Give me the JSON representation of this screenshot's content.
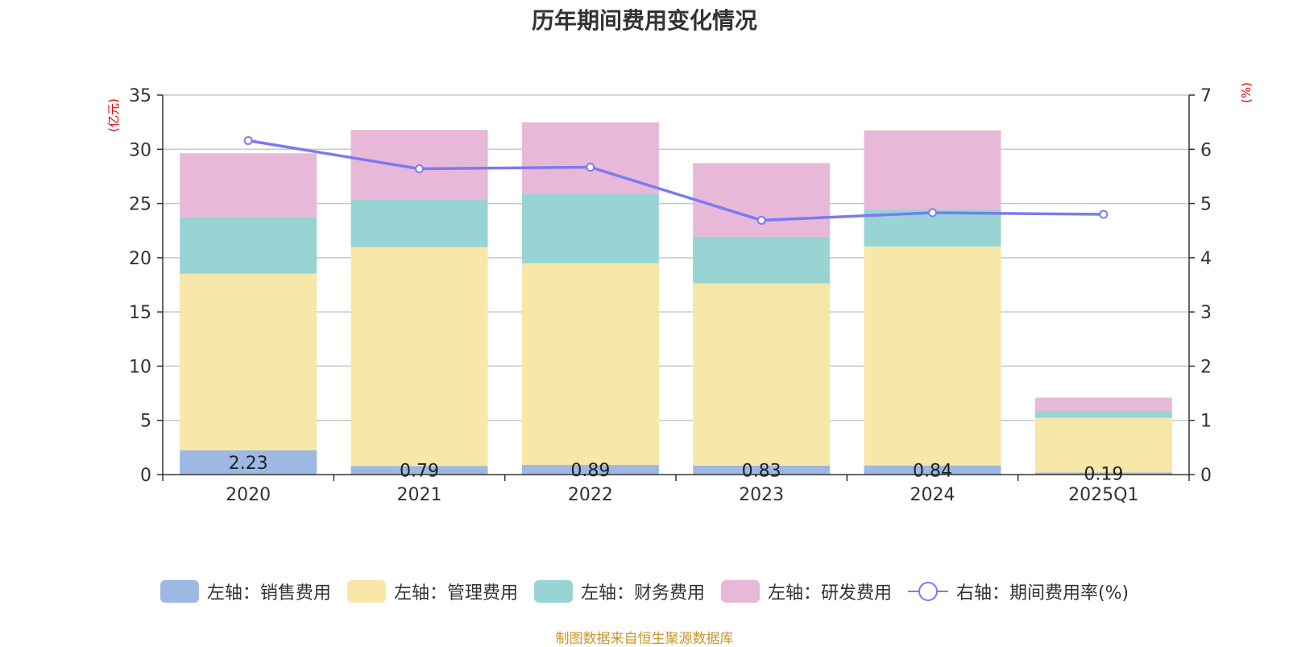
{
  "chart_data": {
    "type": "bar",
    "title": "历年期间费用变化情况",
    "categories": [
      "2020",
      "2021",
      "2022",
      "2023",
      "2024",
      "2025Q1"
    ],
    "left_axis": {
      "unit": "(亿元)",
      "ylim": [
        0,
        35
      ],
      "ticks": [
        0,
        5,
        10,
        15,
        20,
        25,
        30,
        35
      ]
    },
    "right_axis": {
      "unit": "(%)",
      "ylim": [
        0,
        7
      ],
      "ticks": [
        0,
        1,
        2,
        3,
        4,
        5,
        6,
        7
      ]
    },
    "series": [
      {
        "name": "左轴：销售费用",
        "type": "bar",
        "stack": "total",
        "axis": "left",
        "color": "#9db8e2",
        "values": [
          2.23,
          0.79,
          0.89,
          0.83,
          0.84,
          0.19
        ],
        "show_labels": true
      },
      {
        "name": "左轴：管理费用",
        "type": "bar",
        "stack": "total",
        "axis": "left",
        "color": "#f7e7a8",
        "values": [
          16.3,
          20.2,
          18.6,
          16.8,
          20.2,
          5.05
        ]
      },
      {
        "name": "左轴：财务费用",
        "type": "bar",
        "stack": "total",
        "axis": "left",
        "color": "#98d4d4",
        "values": [
          5.2,
          4.4,
          6.4,
          4.3,
          3.4,
          0.65
        ]
      },
      {
        "name": "左轴：研发费用",
        "type": "bar",
        "stack": "total",
        "axis": "left",
        "color": "#e7b8d8",
        "values": [
          5.9,
          6.4,
          6.6,
          6.8,
          7.3,
          1.2
        ]
      },
      {
        "name": "右轴：期间费用率(%)",
        "type": "line",
        "axis": "right",
        "color": "#7b7bf0",
        "values": [
          6.16,
          5.64,
          5.67,
          4.69,
          4.83,
          4.8
        ]
      }
    ],
    "grid": true,
    "legend_position": "bottom"
  },
  "source_note": "制图数据来自恒生聚源数据库"
}
